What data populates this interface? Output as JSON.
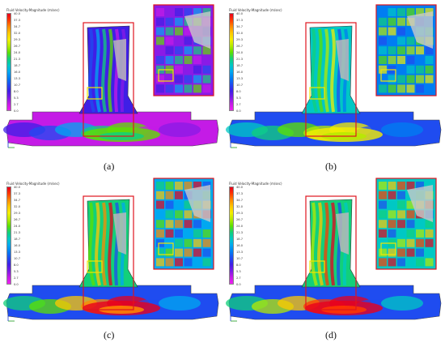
{
  "legend": {
    "title": "Fluid Velocity-Magnitude (m/sec)",
    "ticks": [
      "40.0",
      "37.3",
      "34.7",
      "32.0",
      "29.3",
      "26.7",
      "24.0",
      "21.3",
      "18.7",
      "16.0",
      "13.3",
      "10.7",
      "8.0",
      "5.3",
      "2.7",
      "0.0"
    ],
    "colors": [
      "#e8001d",
      "#ff3a00",
      "#ff8a00",
      "#ffc800",
      "#f4ee00",
      "#b6ea00",
      "#5ee000",
      "#12d07a",
      "#00c8c4",
      "#00a8f0",
      "#007df2",
      "#1f4cf0",
      "#3f1fe6",
      "#7a1be6",
      "#c41be6",
      "#f01ef0"
    ]
  },
  "panels": [
    {
      "id": "a",
      "caption": "(a)"
    },
    {
      "id": "b",
      "caption": "(b)"
    },
    {
      "id": "c",
      "caption": "(c)"
    },
    {
      "id": "d",
      "caption": "(d)"
    }
  ]
}
